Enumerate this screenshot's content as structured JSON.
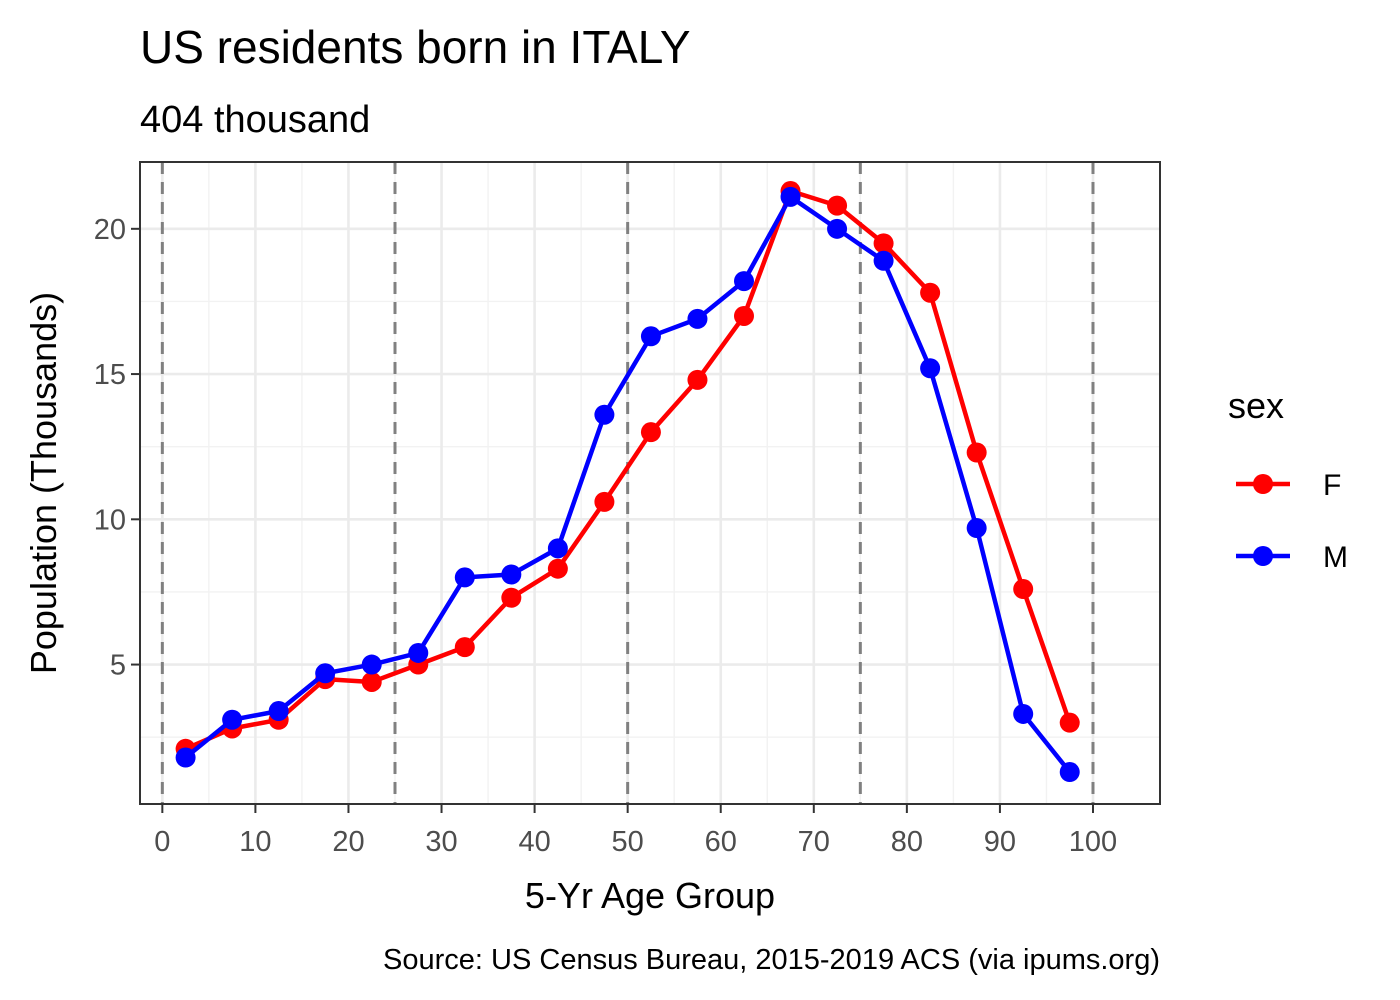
{
  "chart_data": {
    "type": "line",
    "title": "US residents born in ITALY",
    "subtitle": "404 thousand",
    "xlabel": "5-Yr Age Group",
    "ylabel": "Population (Thousands)",
    "caption": "Source: US Census Bureau, 2015-2019 ACS (via ipums.org)",
    "xlim": [
      -2.4,
      107.2
    ],
    "ylim": [
      0.2,
      22.3
    ],
    "x_ticks": [
      0,
      10,
      20,
      30,
      40,
      50,
      60,
      70,
      80,
      90,
      100
    ],
    "y_ticks": [
      5,
      10,
      15,
      20
    ],
    "vlines": [
      0,
      25,
      50,
      75,
      100
    ],
    "grid": true,
    "legend": {
      "title": "sex",
      "position": "right"
    },
    "x": [
      2.5,
      7.5,
      12.5,
      17.5,
      22.5,
      27.5,
      32.5,
      37.5,
      42.5,
      47.5,
      52.5,
      57.5,
      62.5,
      67.5,
      72.5,
      77.5,
      82.5,
      87.5,
      92.5,
      97.5
    ],
    "series": [
      {
        "name": "F",
        "color": "#ff0000",
        "values": [
          2.1,
          2.8,
          3.1,
          4.5,
          4.4,
          5.0,
          5.6,
          7.3,
          8.3,
          10.6,
          13.0,
          14.8,
          17.0,
          21.3,
          20.8,
          19.5,
          17.8,
          12.3,
          7.6,
          3.0
        ]
      },
      {
        "name": "M",
        "color": "#0000ff",
        "values": [
          1.8,
          3.1,
          3.4,
          4.7,
          5.0,
          5.4,
          8.0,
          8.1,
          9.0,
          13.6,
          16.3,
          16.9,
          18.2,
          21.1,
          20.0,
          18.9,
          15.2,
          9.7,
          3.3,
          1.3
        ]
      }
    ]
  }
}
